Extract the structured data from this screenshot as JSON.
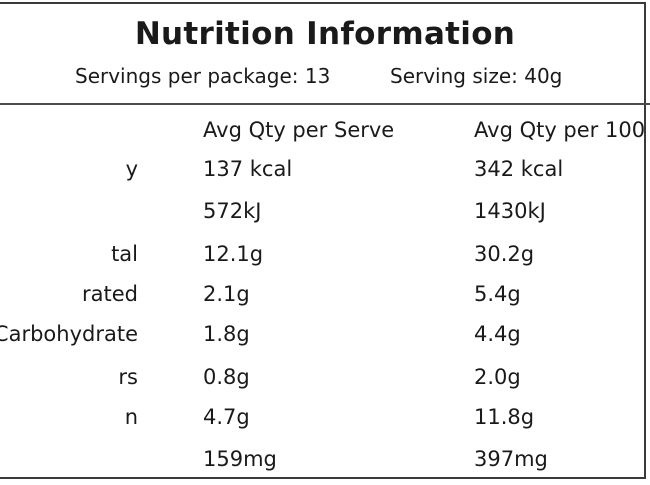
{
  "panel": {
    "title": "Nutrition Information",
    "servings_per_package": "Servings per package: 13",
    "serving_size": "Serving size: 40g"
  },
  "table": {
    "headers": [
      "",
      "Avg Qty per Serve",
      "Avg Qty per 100"
    ],
    "rows": [
      {
        "label": "y",
        "per_serve": "137 kcal",
        "per_100g": "342 kcal"
      },
      {
        "label": "",
        "per_serve": "572kJ",
        "per_100g": "1430kJ"
      },
      {
        "label": "tal",
        "per_serve": "12.1g",
        "per_100g": "30.2g"
      },
      {
        "label": "rated",
        "per_serve": "2.1g",
        "per_100g": "5.4g"
      },
      {
        "label": "Carbohydrate",
        "per_serve": "1.8g",
        "per_100g": "4.4g"
      },
      {
        "label": "rs",
        "per_serve": "0.8g",
        "per_100g": "2.0g"
      },
      {
        "label": "n",
        "per_serve": "4.7g",
        "per_100g": "11.8g"
      },
      {
        "label": "",
        "per_serve": "159mg",
        "per_100g": "397mg"
      }
    ]
  }
}
